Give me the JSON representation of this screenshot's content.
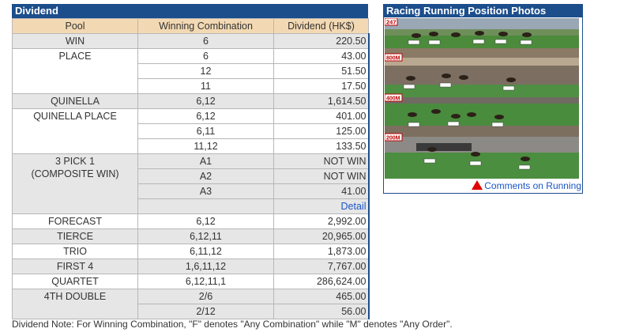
{
  "dividend": {
    "title": "Dividend",
    "headers": {
      "pool": "Pool",
      "combination": "Winning Combination",
      "dividend": "Dividend (HK$)"
    },
    "win": {
      "pool": "WIN",
      "rows": [
        {
          "comb": "6",
          "amt": "220.50"
        }
      ]
    },
    "place": {
      "pool": "PLACE",
      "rows": [
        {
          "comb": "6",
          "amt": "43.00"
        },
        {
          "comb": "12",
          "amt": "51.50"
        },
        {
          "comb": "11",
          "amt": "17.50"
        }
      ]
    },
    "quinella": {
      "pool": "QUINELLA",
      "rows": [
        {
          "comb": "6,12",
          "amt": "1,614.50"
        }
      ]
    },
    "quinella_place": {
      "pool": "QUINELLA PLACE",
      "rows": [
        {
          "comb": "6,12",
          "amt": "401.00"
        },
        {
          "comb": "6,11",
          "amt": "125.00"
        },
        {
          "comb": "11,12",
          "amt": "133.50"
        }
      ]
    },
    "pick3": {
      "pool_line1": "3 PICK 1",
      "pool_line2": "(COMPOSITE WIN)",
      "rows": [
        {
          "comb": "A1",
          "amt": "NOT WIN"
        },
        {
          "comb": "A2",
          "amt": "NOT WIN"
        },
        {
          "comb": "A3",
          "amt": "41.00"
        }
      ],
      "detail": "Detail"
    },
    "forecast": {
      "pool": "FORECAST",
      "rows": [
        {
          "comb": "6,12",
          "amt": "2,992.00"
        }
      ]
    },
    "tierce": {
      "pool": "TIERCE",
      "rows": [
        {
          "comb": "6,12,11",
          "amt": "20,965.00"
        }
      ]
    },
    "trio": {
      "pool": "TRIO",
      "rows": [
        {
          "comb": "6,11,12",
          "amt": "1,873.00"
        }
      ]
    },
    "first4": {
      "pool": "FIRST 4",
      "rows": [
        {
          "comb": "1,6,11,12",
          "amt": "7,767.00"
        }
      ]
    },
    "quartet": {
      "pool": "QUARTET",
      "rows": [
        {
          "comb": "6,12,11,1",
          "amt": "286,624.00"
        }
      ]
    },
    "double4th": {
      "pool": "4TH DOUBLE",
      "rows": [
        {
          "comb": "2/6",
          "amt": "465.00"
        },
        {
          "comb": "2/12",
          "amt": "56.00"
        }
      ]
    },
    "note": "Dividend Note: For Winning Combination, \"F\" denotes \"Any Combination\" while \"M\" denotes \"Any Order\"."
  },
  "photos": {
    "title": "Racing Running Position Photos",
    "markers": {
      "m1": "247",
      "m2": "800M",
      "m3": "400M",
      "m4": "200M"
    },
    "comments_link": "Comments on Running"
  },
  "colors": {
    "header_blue": "#1c4e8c",
    "header_row": "#f3d9b3",
    "grey_row": "#e6e6e6",
    "link": "#1a55c5",
    "marker_red": "#e00000"
  }
}
